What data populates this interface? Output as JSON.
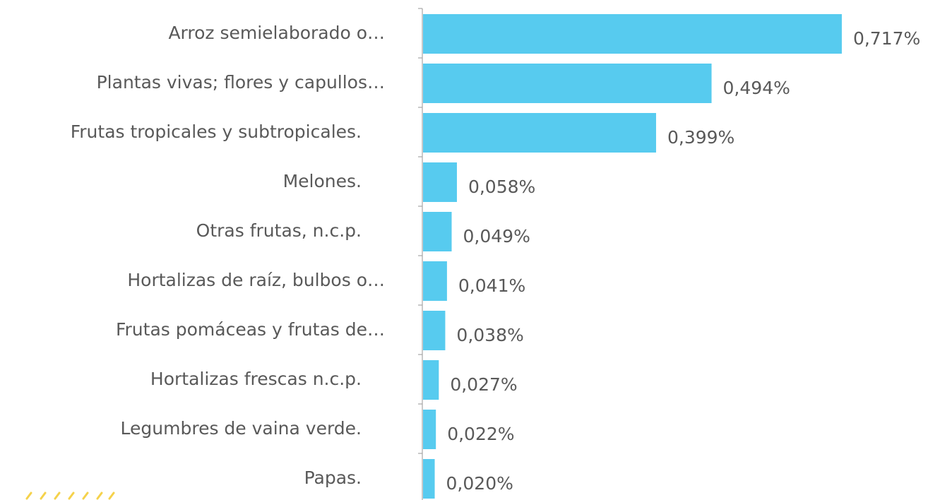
{
  "chart_data": {
    "type": "bar",
    "orientation": "horizontal",
    "color": "#57cbef",
    "categories": [
      "Arroz semielaborado o…",
      "Plantas vivas; flores y capullos…",
      "Frutas tropicales y subtropicales.",
      "Melones.",
      "Otras frutas, n.c.p.",
      "Hortalizas de raíz, bulbos o…",
      "Frutas pomáceas y frutas de…",
      "Hortalizas frescas n.c.p.",
      "Legumbres de vaina verde.",
      "Papas."
    ],
    "values": [
      0.717,
      0.494,
      0.399,
      0.058,
      0.049,
      0.041,
      0.038,
      0.027,
      0.022,
      0.02
    ],
    "value_labels": [
      "0,717%",
      "0,494%",
      "0,399%",
      "0,058%",
      "0,049%",
      "0,041%",
      "0,038%",
      "0,027%",
      "0,022%",
      "0,020%"
    ]
  }
}
